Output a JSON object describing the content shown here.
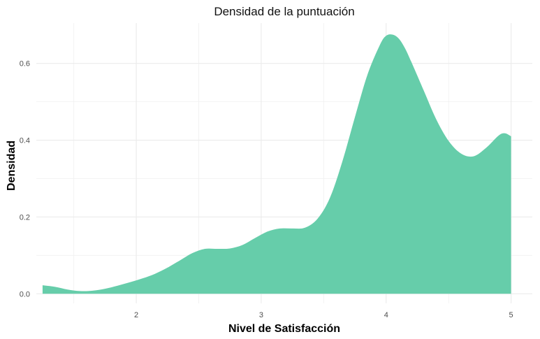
{
  "chart_data": {
    "type": "area",
    "title": "Densidad de la puntuación",
    "xlabel": "Nivel de Satisfacción",
    "ylabel": "Densidad",
    "xlim": [
      1.2,
      5.17
    ],
    "ylim": [
      -0.025,
      0.705
    ],
    "x_ticks": [
      2,
      3,
      4,
      5
    ],
    "x_tick_labels": [
      "2",
      "3",
      "4",
      "5"
    ],
    "x_minor_ticks": [
      1.5,
      2.5,
      3.5,
      4.5
    ],
    "y_ticks": [
      0.0,
      0.2,
      0.4,
      0.6
    ],
    "y_tick_labels": [
      "0.0",
      "0.2",
      "0.4",
      "0.6"
    ],
    "y_minor_ticks": [
      0.1,
      0.3,
      0.5
    ],
    "grid": true,
    "legend": "none",
    "fill_color": "#66CDAA",
    "series": [
      {
        "x": [
          1.25,
          1.35,
          1.45,
          1.55,
          1.65,
          1.75,
          1.85,
          1.95,
          2.05,
          2.15,
          2.25,
          2.35,
          2.45,
          2.55,
          2.65,
          2.75,
          2.85,
          2.95,
          3.05,
          3.15,
          3.25,
          3.35,
          3.45,
          3.55,
          3.65,
          3.75,
          3.85,
          3.95,
          4.0,
          4.05,
          4.1,
          4.15,
          4.2,
          4.3,
          4.4,
          4.5,
          4.6,
          4.7,
          4.8,
          4.9,
          4.95,
          5.0
        ],
        "y": [
          0.022,
          0.018,
          0.011,
          0.007,
          0.008,
          0.013,
          0.021,
          0.03,
          0.04,
          0.052,
          0.068,
          0.087,
          0.106,
          0.117,
          0.117,
          0.118,
          0.127,
          0.145,
          0.162,
          0.17,
          0.17,
          0.172,
          0.195,
          0.25,
          0.345,
          0.46,
          0.57,
          0.648,
          0.672,
          0.675,
          0.665,
          0.64,
          0.605,
          0.53,
          0.455,
          0.398,
          0.365,
          0.358,
          0.38,
          0.412,
          0.418,
          0.41
        ]
      }
    ]
  }
}
